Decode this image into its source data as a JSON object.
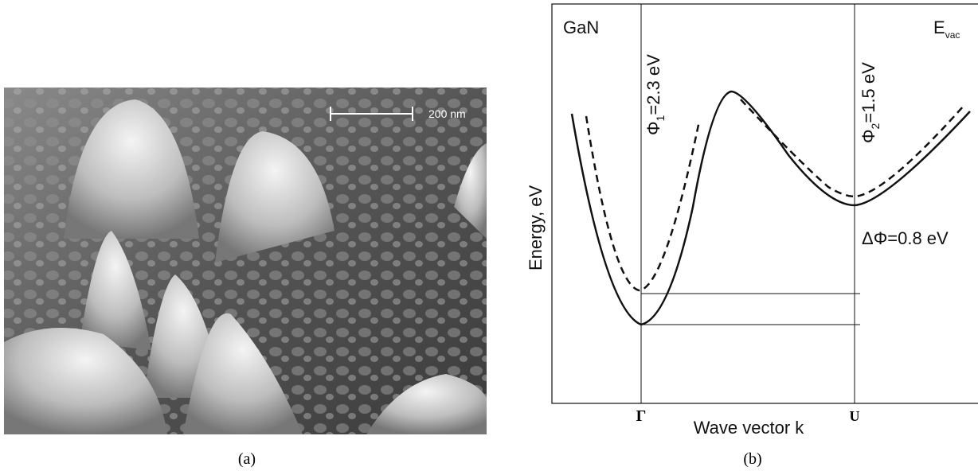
{
  "panel_a": {
    "scale_bar": "200 nm",
    "caption": "(a)"
  },
  "panel_b": {
    "material": "GaN",
    "vacuum_level": {
      "symbol": "E",
      "subscript": "vac"
    },
    "phi1": {
      "symbol": "Φ",
      "subscript": "1",
      "value": "=2.3 eV"
    },
    "phi2": {
      "symbol": "Φ",
      "subscript": "2",
      "value": "=1.5 eV"
    },
    "delta_phi": "ΔΦ=0.8 eV",
    "y_axis_label": "Energy, eV",
    "x_axis_label": "Wave vector k",
    "gamma_point": "Γ",
    "u_point": "U",
    "caption": "(b)"
  }
}
